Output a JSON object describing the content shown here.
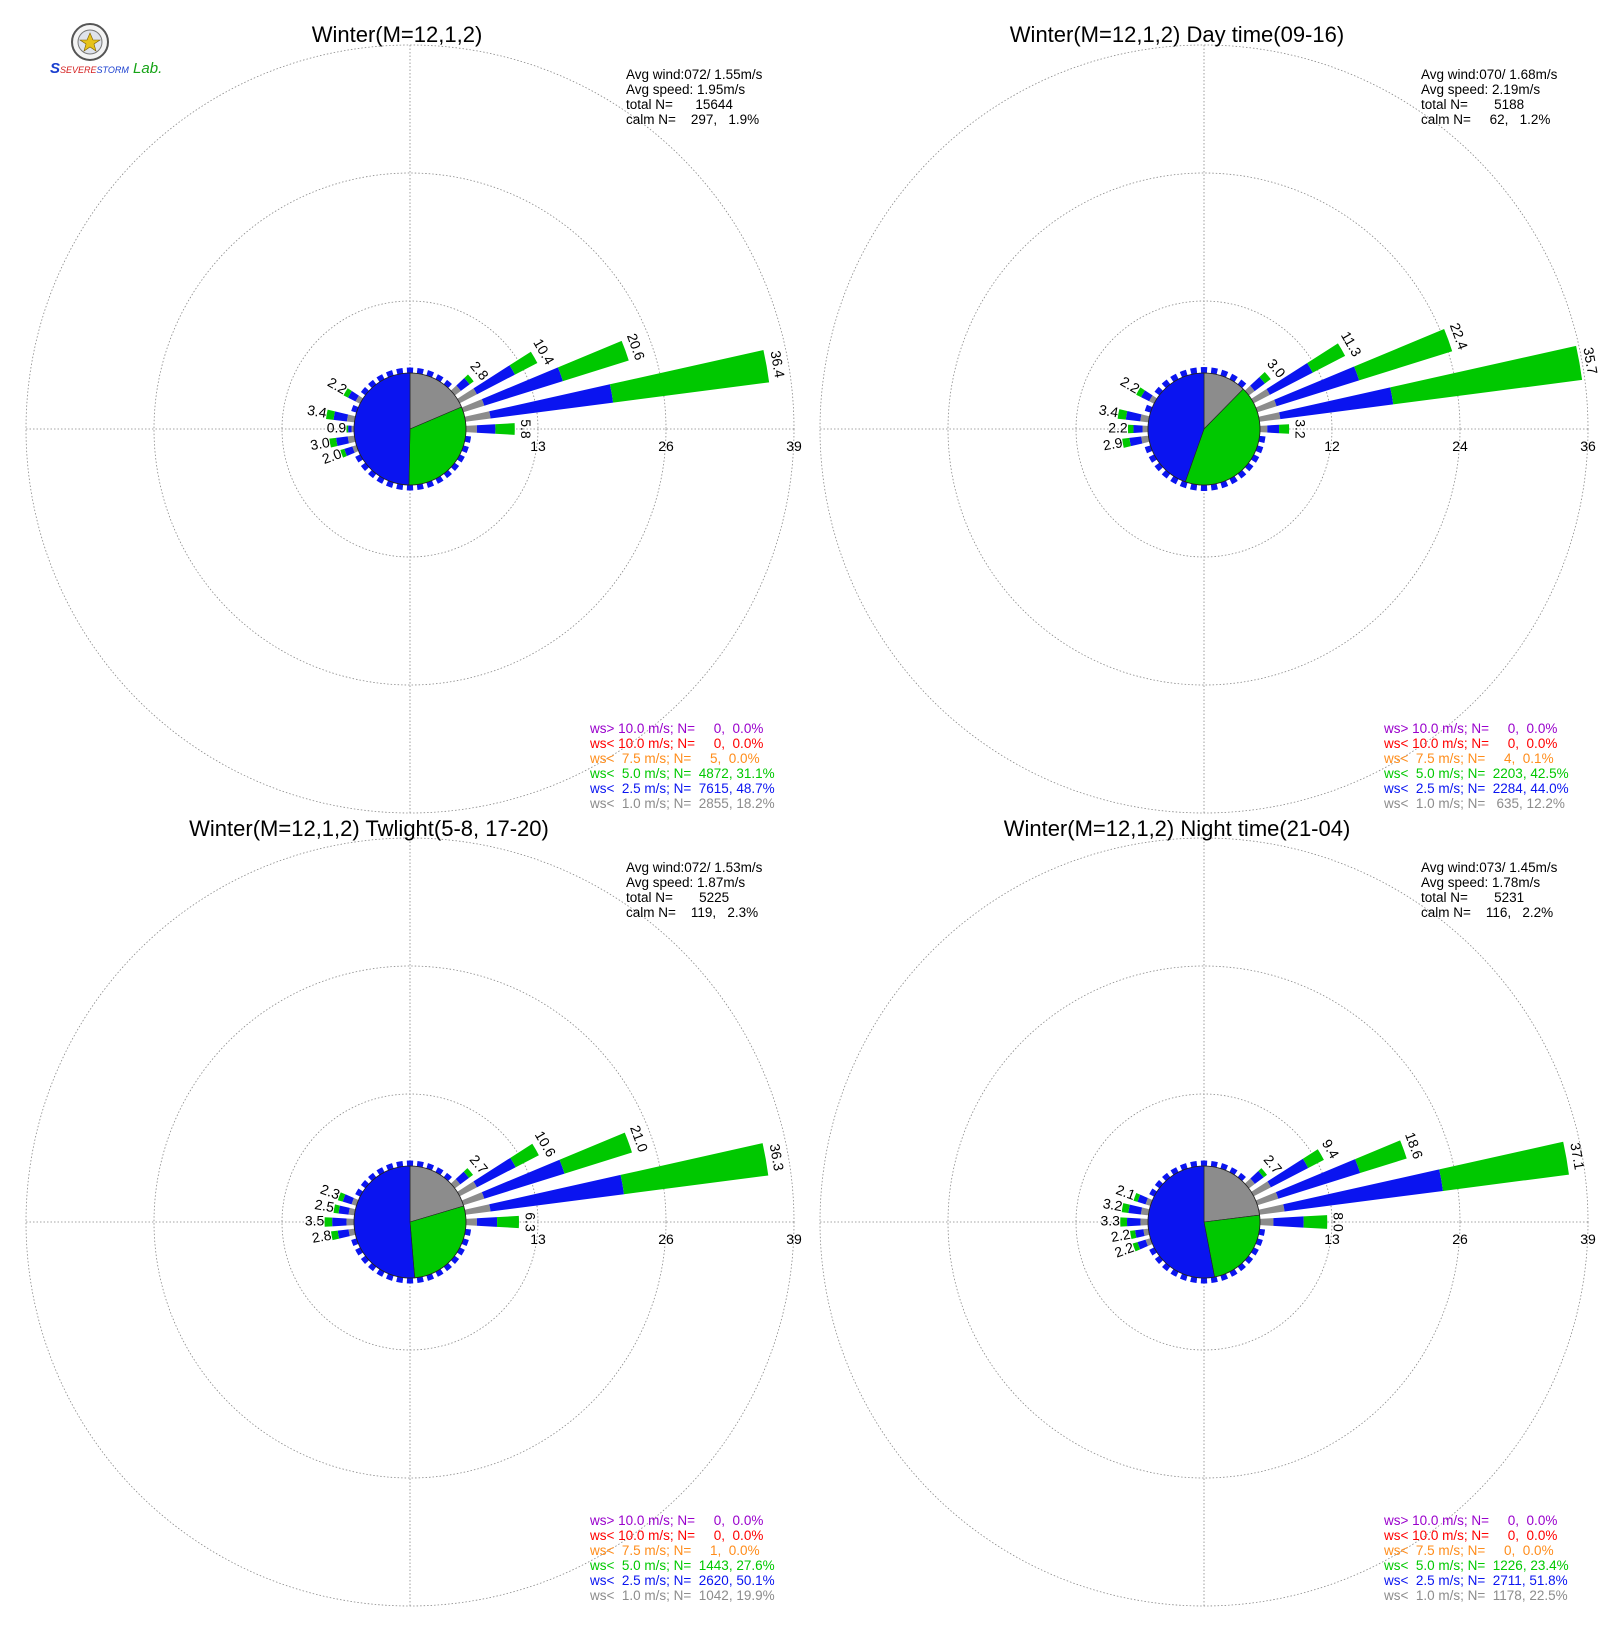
{
  "logo": {
    "text_s": "S",
    "text_severe": "SEVERE",
    "text_storm": "STORM",
    "text_lab": "Lab."
  },
  "colors": {
    "lt1": "#8c8c8c",
    "lt25": "#0a14f0",
    "lt5": "#00c800",
    "lt75": "#ff8c1a",
    "lt10": "#ff0000",
    "gt10": "#9900cc",
    "grid": "#888888",
    "text": "#000000"
  },
  "directions_deg": [
    0,
    10,
    20,
    30,
    40,
    50,
    60,
    70,
    80,
    90,
    100,
    110,
    120,
    130,
    140,
    150,
    160,
    170,
    180,
    190,
    200,
    210,
    220,
    230,
    240,
    250,
    260,
    270,
    280,
    290,
    300,
    310,
    320,
    330,
    340,
    350
  ],
  "chart_data": [
    {
      "type": "windrose",
      "title": "Winter(M=12,1,2)",
      "stats": [
        "Avg wind:072/ 1.55m/s",
        "Avg speed: 1.95m/s",
        "total N=      15644",
        "calm N=    297,   1.9%"
      ],
      "ring_labels": [
        "13",
        "26",
        "39"
      ],
      "rmax": 39,
      "petals": [
        {
          "dir": 60,
          "total": 10.4,
          "lt1": 2.3,
          "lt25": 5.1,
          "lt5": 3.0,
          "label": "10.4"
        },
        {
          "dir": 70,
          "total": 20.6,
          "lt1": 2.6,
          "lt25": 9.8,
          "lt5": 8.2,
          "label": "20.6"
        },
        {
          "dir": 80,
          "total": 36.4,
          "lt1": 3.0,
          "lt25": 14.7,
          "lt5": 18.7,
          "label": "36.4"
        },
        {
          "dir": 50,
          "total": 2.8,
          "lt1": 0.9,
          "lt25": 1.3,
          "lt5": 0.6,
          "label": "2.8"
        },
        {
          "dir": 90,
          "total": 5.8,
          "lt1": 1.3,
          "lt25": 2.2,
          "lt5": 2.3,
          "label": "5.8"
        },
        {
          "dir": 300,
          "total": 2.2,
          "lt1": 0.6,
          "lt25": 1.0,
          "lt5": 0.6,
          "label": "2.2"
        },
        {
          "dir": 280,
          "total": 3.4,
          "lt1": 0.9,
          "lt25": 1.6,
          "lt5": 0.9,
          "label": "3.4"
        },
        {
          "dir": 270,
          "total": 0.9,
          "lt1": 0.3,
          "lt25": 0.4,
          "lt5": 0.2,
          "label": "0.9"
        },
        {
          "dir": 260,
          "total": 3.0,
          "lt1": 0.8,
          "lt25": 1.4,
          "lt5": 0.8,
          "label": "3.0"
        },
        {
          "dir": 250,
          "total": 2.0,
          "lt1": 0.5,
          "lt25": 1.0,
          "lt5": 0.5,
          "label": "2.0"
        }
      ],
      "pie": {
        "lt1": 18.2,
        "lt25": 48.7,
        "lt5": 31.1
      },
      "legend": [
        {
          "key": "gt10",
          "text": "ws> 10.0 m/s; N=     0,  0.0%"
        },
        {
          "key": "lt10",
          "text": "ws< 10.0 m/s; N=     0,  0.0%"
        },
        {
          "key": "lt75",
          "text": "ws<  7.5 m/s; N=     5,  0.0%"
        },
        {
          "key": "lt5",
          "text": "ws<  5.0 m/s; N=  4872, 31.1%"
        },
        {
          "key": "lt25",
          "text": "ws<  2.5 m/s; N=  7615, 48.7%"
        },
        {
          "key": "lt1",
          "text": "ws<  1.0 m/s; N=  2855, 18.2%"
        }
      ]
    },
    {
      "type": "windrose",
      "title": "Winter(M=12,1,2) Day time(09-16)",
      "stats": [
        "Avg wind:070/ 1.68m/s",
        "Avg speed: 2.19m/s",
        "total N=       5188",
        "calm N=     62,   1.2%"
      ],
      "ring_labels": [
        "12",
        "24",
        "36"
      ],
      "rmax": 36,
      "petals": [
        {
          "dir": 60,
          "total": 11.3,
          "lt1": 2.0,
          "lt25": 5.3,
          "lt5": 4.0,
          "label": "11.3"
        },
        {
          "dir": 70,
          "total": 22.4,
          "lt1": 2.2,
          "lt25": 9.5,
          "lt5": 10.7,
          "label": "22.4"
        },
        {
          "dir": 80,
          "total": 35.7,
          "lt1": 2.3,
          "lt25": 12.5,
          "lt5": 20.9,
          "label": "35.7"
        },
        {
          "dir": 50,
          "total": 3.0,
          "lt1": 0.8,
          "lt25": 1.4,
          "lt5": 0.8,
          "label": "3.0"
        },
        {
          "dir": 90,
          "total": 3.2,
          "lt1": 0.8,
          "lt25": 1.3,
          "lt5": 1.1,
          "label": "3.2"
        },
        {
          "dir": 300,
          "total": 2.2,
          "lt1": 0.6,
          "lt25": 1.0,
          "lt5": 0.6,
          "label": "2.2"
        },
        {
          "dir": 280,
          "total": 3.4,
          "lt1": 0.9,
          "lt25": 1.6,
          "lt5": 0.9,
          "label": "3.4"
        },
        {
          "dir": 270,
          "total": 2.2,
          "lt1": 0.6,
          "lt25": 1.0,
          "lt5": 0.6,
          "label": "2.2"
        },
        {
          "dir": 260,
          "total": 2.9,
          "lt1": 0.8,
          "lt25": 1.3,
          "lt5": 0.8,
          "label": "2.9"
        }
      ],
      "pie": {
        "lt1": 12.2,
        "lt25": 44.0,
        "lt5": 42.5
      },
      "legend": [
        {
          "key": "gt10",
          "text": "ws> 10.0 m/s; N=     0,  0.0%"
        },
        {
          "key": "lt10",
          "text": "ws< 10.0 m/s; N=     0,  0.0%"
        },
        {
          "key": "lt75",
          "text": "ws<  7.5 m/s; N=     4,  0.1%"
        },
        {
          "key": "lt5",
          "text": "ws<  5.0 m/s; N=  2203, 42.5%"
        },
        {
          "key": "lt25",
          "text": "ws<  2.5 m/s; N=  2284, 44.0%"
        },
        {
          "key": "lt1",
          "text": "ws<  1.0 m/s; N=   635, 12.2%"
        }
      ]
    },
    {
      "type": "windrose",
      "title": "Winter(M=12,1,2) Twlight(5-8, 17-20)",
      "stats": [
        "Avg wind:072/ 1.53m/s",
        "Avg speed: 1.87m/s",
        "total N=       5225",
        "calm N=    119,   2.3%"
      ],
      "ring_labels": [
        "13",
        "26",
        "39"
      ],
      "rmax": 39,
      "petals": [
        {
          "dir": 60,
          "total": 10.6,
          "lt1": 2.3,
          "lt25": 5.2,
          "lt5": 3.1,
          "label": "10.6"
        },
        {
          "dir": 70,
          "total": 21.0,
          "lt1": 2.6,
          "lt25": 10.0,
          "lt5": 8.4,
          "label": "21.0"
        },
        {
          "dir": 80,
          "total": 36.3,
          "lt1": 3.0,
          "lt25": 16.0,
          "lt5": 17.3,
          "label": "36.3"
        },
        {
          "dir": 50,
          "total": 2.7,
          "lt1": 0.8,
          "lt25": 1.3,
          "lt5": 0.6,
          "label": "2.7"
        },
        {
          "dir": 90,
          "total": 6.3,
          "lt1": 1.3,
          "lt25": 2.4,
          "lt5": 2.6,
          "label": "6.3"
        },
        {
          "dir": 290,
          "total": 2.3,
          "lt1": 0.6,
          "lt25": 1.1,
          "lt5": 0.6,
          "label": "2.3"
        },
        {
          "dir": 280,
          "total": 2.5,
          "lt1": 0.7,
          "lt25": 1.2,
          "lt5": 0.6,
          "label": "2.5"
        },
        {
          "dir": 270,
          "total": 3.5,
          "lt1": 0.9,
          "lt25": 1.7,
          "lt5": 0.9,
          "label": "3.5"
        },
        {
          "dir": 260,
          "total": 2.8,
          "lt1": 0.7,
          "lt25": 1.3,
          "lt5": 0.8,
          "label": "2.8"
        }
      ],
      "pie": {
        "lt1": 19.9,
        "lt25": 50.1,
        "lt5": 27.6
      },
      "legend": [
        {
          "key": "gt10",
          "text": "ws> 10.0 m/s; N=     0,  0.0%"
        },
        {
          "key": "lt10",
          "text": "ws< 10.0 m/s; N=     0,  0.0%"
        },
        {
          "key": "lt75",
          "text": "ws<  7.5 m/s; N=     1,  0.0%"
        },
        {
          "key": "lt5",
          "text": "ws<  5.0 m/s; N=  1443, 27.6%"
        },
        {
          "key": "lt25",
          "text": "ws<  2.5 m/s; N=  2620, 50.1%"
        },
        {
          "key": "lt1",
          "text": "ws<  1.0 m/s; N=  1042, 19.9%"
        }
      ]
    },
    {
      "type": "windrose",
      "title": "Winter(M=12,1,2) Night time(21-04)",
      "stats": [
        "Avg wind:073/ 1.45m/s",
        "Avg speed: 1.78m/s",
        "total N=       5231",
        "calm N=    116,   2.2%"
      ],
      "ring_labels": [
        "13",
        "26",
        "39"
      ],
      "rmax": 39,
      "petals": [
        {
          "dir": 60,
          "total": 9.4,
          "lt1": 2.3,
          "lt25": 5.0,
          "lt5": 2.1,
          "label": "9.4"
        },
        {
          "dir": 70,
          "total": 18.6,
          "lt1": 2.6,
          "lt25": 10.2,
          "lt5": 5.8,
          "label": "18.6"
        },
        {
          "dir": 80,
          "total": 37.1,
          "lt1": 3.0,
          "lt25": 19.0,
          "lt5": 15.1,
          "label": "37.1"
        },
        {
          "dir": 50,
          "total": 2.7,
          "lt1": 0.9,
          "lt25": 1.3,
          "lt5": 0.5,
          "label": "2.7"
        },
        {
          "dir": 90,
          "total": 8.0,
          "lt1": 1.6,
          "lt25": 3.6,
          "lt5": 2.8,
          "label": "8.0"
        },
        {
          "dir": 290,
          "total": 2.1,
          "lt1": 0.6,
          "lt25": 1.0,
          "lt5": 0.5,
          "label": "2.1"
        },
        {
          "dir": 280,
          "total": 3.2,
          "lt1": 0.9,
          "lt25": 1.5,
          "lt5": 0.8,
          "label": "3.2"
        },
        {
          "dir": 270,
          "total": 3.3,
          "lt1": 0.9,
          "lt25": 1.6,
          "lt5": 0.8,
          "label": "3.3"
        },
        {
          "dir": 260,
          "total": 2.2,
          "lt1": 0.6,
          "lt25": 1.0,
          "lt5": 0.6,
          "label": "2.2"
        },
        {
          "dir": 250,
          "total": 2.2,
          "lt1": 0.6,
          "lt25": 1.0,
          "lt5": 0.6,
          "label": "2.2"
        }
      ],
      "pie": {
        "lt1": 22.5,
        "lt25": 51.8,
        "lt5": 23.4
      },
      "legend": [
        {
          "key": "gt10",
          "text": "ws> 10.0 m/s; N=     0,  0.0%"
        },
        {
          "key": "lt10",
          "text": "ws< 10.0 m/s; N=     0,  0.0%"
        },
        {
          "key": "lt75",
          "text": "ws<  7.5 m/s; N=     0,  0.0%"
        },
        {
          "key": "lt5",
          "text": "ws<  5.0 m/s; N=  1226, 23.4%"
        },
        {
          "key": "lt25",
          "text": "ws<  2.5 m/s; N=  2711, 51.8%"
        },
        {
          "key": "lt1",
          "text": "ws<  1.0 m/s; N=  1178, 22.5%"
        }
      ]
    }
  ]
}
